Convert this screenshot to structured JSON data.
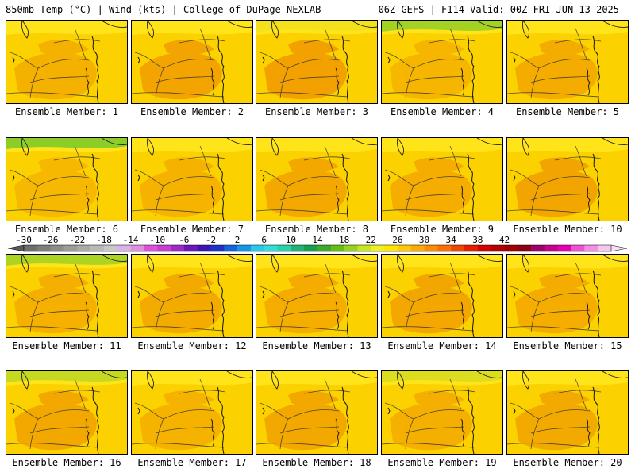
{
  "header": {
    "left": "850mb Temp (°C) | Wind (kts) | College of DuPage NEXLAB",
    "right": "06Z GEFS | F114 Valid: 00Z FRI JUN 13 2025"
  },
  "panel_prefix": "Ensemble Member: ",
  "members": [
    {
      "label": "1",
      "tint": "#f5ae00",
      "north_green": 0.0
    },
    {
      "label": "2",
      "tint": "#f3a000",
      "north_green": 0.0
    },
    {
      "label": "3",
      "tint": "#f29c00",
      "north_green": 0.1
    },
    {
      "label": "4",
      "tint": "#f6b400",
      "north_green": 0.8
    },
    {
      "label": "5",
      "tint": "#f4a800",
      "north_green": 0.0
    },
    {
      "label": "6",
      "tint": "#f6b600",
      "north_green": 1.0
    },
    {
      "label": "7",
      "tint": "#f5b000",
      "north_green": 0.0
    },
    {
      "label": "8",
      "tint": "#f3a400",
      "north_green": 0.0
    },
    {
      "label": "9",
      "tint": "#f4aa00",
      "north_green": 0.0
    },
    {
      "label": "10",
      "tint": "#f2a000",
      "north_green": 0.0
    },
    {
      "label": "11",
      "tint": "#f4ac00",
      "north_green": 0.7
    },
    {
      "label": "12",
      "tint": "#f3a600",
      "north_green": 0.0
    },
    {
      "label": "13",
      "tint": "#f4a800",
      "north_green": 0.0
    },
    {
      "label": "14",
      "tint": "#f2a200",
      "north_green": 0.0
    },
    {
      "label": "15",
      "tint": "#f4a800",
      "north_green": 0.0
    },
    {
      "label": "16",
      "tint": "#f3a400",
      "north_green": 0.5
    },
    {
      "label": "17",
      "tint": "#f5b000",
      "north_green": 0.0
    },
    {
      "label": "18",
      "tint": "#f3a400",
      "north_green": 0.0
    },
    {
      "label": "19",
      "tint": "#f4ac00",
      "north_green": 0.3
    },
    {
      "label": "20",
      "tint": "#f3a600",
      "north_green": 0.0
    }
  ],
  "colorbar": {
    "ticks": [
      "-30",
      "-26",
      "-22",
      "-18",
      "-14",
      "-10",
      "-6",
      "-2",
      "2",
      "6",
      "10",
      "14",
      "18",
      "22",
      "26",
      "30",
      "34",
      "38",
      "42"
    ],
    "colors": [
      "#6e6e6e",
      "#7d7d7d",
      "#8c8c8c",
      "#9b9b9b",
      "#aaaaaa",
      "#b9b9b9",
      "#c8c8c8",
      "#d7b4e6",
      "#e08ce0",
      "#dc50dc",
      "#c83cd2",
      "#a028c8",
      "#7014be",
      "#3c14b4",
      "#1e32c8",
      "#1464dc",
      "#1496e6",
      "#28c8f0",
      "#32dcdc",
      "#28d2aa",
      "#1eb478",
      "#14a050",
      "#3caa28",
      "#64be14",
      "#96d21e",
      "#c8e61e",
      "#f0f01e",
      "#ffe600",
      "#ffc800",
      "#ffaa00",
      "#ff8c00",
      "#ff6e00",
      "#f04600",
      "#e61e00",
      "#d20000",
      "#b40000",
      "#a00000",
      "#8c0014",
      "#a0006e",
      "#c8008c",
      "#e600b4",
      "#f050d2",
      "#f58ce6",
      "#f5c8f0"
    ]
  }
}
